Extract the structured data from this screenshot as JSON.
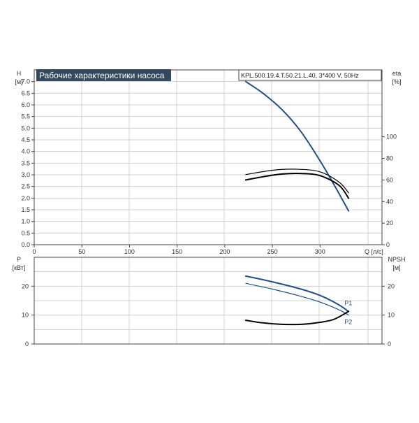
{
  "chart_data": [
    {
      "type": "line",
      "title": "Рабочие характеристики насоса",
      "model": "KPL.500.19.4.T.50.21.L.40, 3*400 V, 50Hz",
      "xlabel": "Q [л/с]",
      "ylabel_name": "H",
      "ylabel_unit": "[м]",
      "y2label_name": "eta",
      "y2label_unit": "[%]",
      "xlim": [
        0,
        365
      ],
      "ylim": [
        0,
        7.5
      ],
      "y2lim": [
        0,
        162
      ],
      "x_ticks": [
        "0",
        "50",
        "100",
        "150",
        "200",
        "250",
        "300"
      ],
      "y_ticks": [
        "0.0",
        "0.5",
        "1.0",
        "1.5",
        "2.0",
        "2.5",
        "3.0",
        "3.5",
        "4.0",
        "4.5",
        "5.0",
        "5.5",
        "6.0",
        "6.5",
        "7.0"
      ],
      "y2_ticks": [
        "0",
        "20",
        "40",
        "60",
        "80",
        "100"
      ],
      "grid": true,
      "series": [
        {
          "axis": "left",
          "color": "#1f4e8c",
          "x": [
            222,
            240,
            260,
            280,
            300,
            315,
            330
          ],
          "y": [
            7.0,
            6.5,
            5.8,
            4.85,
            3.6,
            2.55,
            1.45
          ]
        },
        {
          "axis": "right",
          "color": "#000000",
          "x": [
            222,
            240,
            260,
            280,
            300,
            320,
            330
          ],
          "y": [
            60,
            63,
            65.5,
            66,
            64,
            55,
            43
          ]
        },
        {
          "axis": "right",
          "color": "#000000",
          "x": [
            222,
            250,
            275,
            300,
            320,
            330
          ],
          "y": [
            65,
            69,
            70,
            67.5,
            58,
            48
          ]
        }
      ]
    },
    {
      "type": "line",
      "ylabel_name": "P",
      "ylabel_unit": "[кВт]",
      "y2label_name": "NPSH",
      "y2label_unit": "[м]",
      "xlim": [
        0,
        365
      ],
      "ylim": [
        0,
        30
      ],
      "y_ticks": [
        "0",
        "10",
        "20"
      ],
      "y2_ticks": [
        "0",
        "10",
        "20"
      ],
      "grid": true,
      "series": [
        {
          "name": "P1",
          "axis": "left",
          "color": "#1f4e8c",
          "x": [
            222,
            250,
            280,
            300,
            320,
            330
          ],
          "y": [
            23.5,
            21.5,
            19,
            16.8,
            13.5,
            11.2
          ]
        },
        {
          "name": "P2",
          "axis": "left",
          "color": "#1f4e8c",
          "x": [
            222,
            250,
            280,
            300,
            320,
            330
          ],
          "y": [
            21,
            19,
            16.5,
            14.5,
            11.8,
            10
          ]
        },
        {
          "axis": "right",
          "color": "#000000",
          "x": [
            222,
            240,
            260,
            280,
            300,
            315,
            330
          ],
          "y": [
            8.2,
            7.3,
            6.8,
            6.8,
            7.5,
            8.6,
            11.3
          ]
        }
      ]
    }
  ]
}
